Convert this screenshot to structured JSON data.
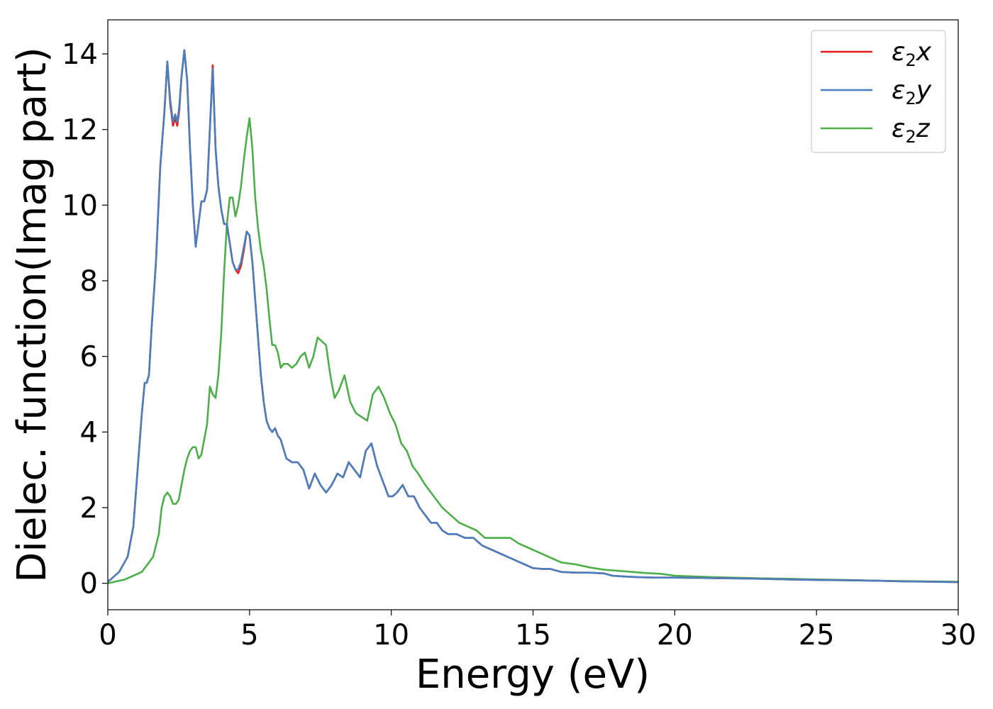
{
  "chart_data": {
    "type": "line",
    "title": "",
    "xlabel": "Energy (eV)",
    "ylabel": "Dielec. function(Imag part)",
    "xlim": [
      0,
      30
    ],
    "ylim": [
      -0.7,
      14.9
    ],
    "xticks": [
      0,
      5,
      10,
      15,
      20,
      25,
      30
    ],
    "yticks": [
      0,
      2,
      4,
      6,
      8,
      10,
      12,
      14
    ],
    "grid": false,
    "legend_position": "top-right",
    "series": [
      {
        "name": "ε₂x",
        "legend_base": "ε",
        "legend_sub": "2",
        "legend_suffix": "x",
        "color": "#e41a1c",
        "x": [
          0,
          0.1,
          0.4,
          0.7,
          0.9,
          1.05,
          1.2,
          1.3,
          1.37,
          1.45,
          1.55,
          1.7,
          1.85,
          2.0,
          2.1,
          2.2,
          2.3,
          2.38,
          2.45,
          2.52,
          2.6,
          2.7,
          2.8,
          2.9,
          3.0,
          3.1,
          3.2,
          3.3,
          3.4,
          3.5,
          3.6,
          3.7,
          3.8,
          3.9,
          4.0,
          4.1,
          4.2,
          4.3,
          4.4,
          4.5,
          4.6,
          4.7,
          4.8,
          4.9,
          5.0,
          5.1,
          5.2,
          5.3,
          5.4,
          5.5,
          5.6,
          5.7,
          5.8,
          5.9,
          6.0,
          6.1,
          6.3,
          6.5,
          6.7,
          6.9,
          7.1,
          7.3,
          7.5,
          7.7,
          7.9,
          8.1,
          8.3,
          8.5,
          8.7,
          8.9,
          9.1,
          9.3,
          9.5,
          9.7,
          9.9,
          10.05,
          10.2,
          10.4,
          10.6,
          10.8,
          11.0,
          11.2,
          11.4,
          11.6,
          11.8,
          12.0,
          12.3,
          12.6,
          12.9,
          13.2,
          13.5,
          13.8,
          14.1,
          14.4,
          14.7,
          15.0,
          15.3,
          15.6,
          16.0,
          16.5,
          17.0,
          17.5,
          17.8,
          18.2,
          18.7,
          19.3,
          20.0,
          21.0,
          22.0,
          23.0,
          24.0,
          25.0,
          26.0,
          27.0,
          28.0,
          29.0,
          30.0
        ],
        "y": [
          0.05,
          0.1,
          0.3,
          0.7,
          1.5,
          3.0,
          4.5,
          5.3,
          5.3,
          5.5,
          6.8,
          8.5,
          11.0,
          12.5,
          13.8,
          12.7,
          12.1,
          12.3,
          12.1,
          12.5,
          13.4,
          14.1,
          13.3,
          11.5,
          10.0,
          8.9,
          9.5,
          10.1,
          10.1,
          10.4,
          12.0,
          13.7,
          11.5,
          10.5,
          9.9,
          9.5,
          9.5,
          9.0,
          8.5,
          8.3,
          8.2,
          8.4,
          8.8,
          9.3,
          9.2,
          8.5,
          7.5,
          6.5,
          5.5,
          4.8,
          4.3,
          4.1,
          4.0,
          4.1,
          3.9,
          3.8,
          3.3,
          3.2,
          3.2,
          3.0,
          2.5,
          2.9,
          2.6,
          2.4,
          2.6,
          2.9,
          2.8,
          3.2,
          3.0,
          2.8,
          3.5,
          3.7,
          3.1,
          2.7,
          2.3,
          2.3,
          2.4,
          2.6,
          2.3,
          2.3,
          2.0,
          1.8,
          1.6,
          1.6,
          1.4,
          1.3,
          1.3,
          1.2,
          1.2,
          1.0,
          0.9,
          0.8,
          0.7,
          0.6,
          0.5,
          0.4,
          0.38,
          0.38,
          0.3,
          0.28,
          0.28,
          0.26,
          0.2,
          0.18,
          0.16,
          0.15,
          0.15,
          0.14,
          0.13,
          0.12,
          0.1,
          0.09,
          0.08,
          0.07,
          0.05,
          0.04,
          0.03
        ]
      },
      {
        "name": "ε₂y",
        "legend_base": "ε",
        "legend_sub": "2",
        "legend_suffix": "y",
        "color": "#4a7fbf",
        "x": [
          0,
          0.1,
          0.4,
          0.7,
          0.9,
          1.05,
          1.2,
          1.3,
          1.37,
          1.45,
          1.55,
          1.7,
          1.85,
          2.0,
          2.1,
          2.2,
          2.3,
          2.38,
          2.45,
          2.52,
          2.6,
          2.7,
          2.8,
          2.9,
          3.0,
          3.1,
          3.2,
          3.3,
          3.4,
          3.5,
          3.6,
          3.7,
          3.8,
          3.9,
          4.0,
          4.1,
          4.2,
          4.3,
          4.4,
          4.5,
          4.6,
          4.7,
          4.8,
          4.9,
          5.0,
          5.1,
          5.2,
          5.3,
          5.4,
          5.5,
          5.6,
          5.7,
          5.8,
          5.9,
          6.0,
          6.1,
          6.3,
          6.5,
          6.7,
          6.9,
          7.1,
          7.3,
          7.5,
          7.7,
          7.9,
          8.1,
          8.3,
          8.5,
          8.7,
          8.9,
          9.1,
          9.3,
          9.5,
          9.7,
          9.9,
          10.05,
          10.2,
          10.4,
          10.6,
          10.8,
          11.0,
          11.2,
          11.4,
          11.6,
          11.8,
          12.0,
          12.3,
          12.6,
          12.9,
          13.2,
          13.5,
          13.8,
          14.1,
          14.4,
          14.7,
          15.0,
          15.3,
          15.6,
          16.0,
          16.5,
          17.0,
          17.5,
          17.8,
          18.2,
          18.7,
          19.3,
          20.0,
          21.0,
          22.0,
          23.0,
          24.0,
          25.0,
          26.0,
          27.0,
          28.0,
          29.0,
          30.0
        ],
        "y": [
          0.05,
          0.1,
          0.3,
          0.7,
          1.5,
          3.0,
          4.5,
          5.3,
          5.3,
          5.5,
          6.8,
          8.5,
          11.0,
          12.5,
          13.8,
          12.8,
          12.2,
          12.4,
          12.2,
          12.6,
          13.4,
          14.1,
          13.3,
          11.5,
          10.0,
          8.9,
          9.5,
          10.1,
          10.1,
          10.4,
          12.0,
          13.6,
          11.5,
          10.5,
          9.9,
          9.5,
          9.5,
          9.0,
          8.5,
          8.3,
          8.3,
          8.5,
          8.9,
          9.3,
          9.2,
          8.5,
          7.5,
          6.5,
          5.5,
          4.8,
          4.3,
          4.1,
          4.0,
          4.1,
          3.9,
          3.8,
          3.3,
          3.2,
          3.2,
          3.0,
          2.5,
          2.9,
          2.6,
          2.4,
          2.6,
          2.9,
          2.8,
          3.2,
          3.0,
          2.8,
          3.5,
          3.7,
          3.1,
          2.7,
          2.3,
          2.3,
          2.4,
          2.6,
          2.3,
          2.3,
          2.0,
          1.8,
          1.6,
          1.6,
          1.4,
          1.3,
          1.3,
          1.2,
          1.2,
          1.0,
          0.9,
          0.8,
          0.7,
          0.6,
          0.5,
          0.4,
          0.38,
          0.38,
          0.3,
          0.28,
          0.28,
          0.26,
          0.2,
          0.18,
          0.16,
          0.15,
          0.15,
          0.14,
          0.13,
          0.12,
          0.1,
          0.09,
          0.08,
          0.07,
          0.05,
          0.04,
          0.03
        ]
      },
      {
        "name": "ε₂z",
        "legend_base": "ε",
        "legend_sub": "2",
        "legend_suffix": "z",
        "color": "#4daf4a",
        "x": [
          0,
          0.3,
          0.6,
          0.9,
          1.2,
          1.4,
          1.6,
          1.8,
          1.9,
          2.0,
          2.1,
          2.2,
          2.3,
          2.4,
          2.5,
          2.6,
          2.7,
          2.8,
          2.9,
          3.0,
          3.1,
          3.2,
          3.3,
          3.4,
          3.5,
          3.6,
          3.7,
          3.8,
          3.9,
          4.0,
          4.1,
          4.2,
          4.3,
          4.4,
          4.5,
          4.6,
          4.7,
          4.8,
          4.9,
          5.0,
          5.1,
          5.2,
          5.3,
          5.4,
          5.5,
          5.6,
          5.7,
          5.8,
          5.9,
          6.0,
          6.1,
          6.2,
          6.35,
          6.5,
          6.65,
          6.8,
          6.95,
          7.1,
          7.25,
          7.4,
          7.55,
          7.7,
          7.85,
          8.0,
          8.15,
          8.35,
          8.55,
          8.75,
          8.95,
          9.15,
          9.35,
          9.55,
          9.75,
          9.95,
          10.15,
          10.35,
          10.55,
          10.75,
          10.95,
          11.2,
          11.5,
          11.8,
          12.1,
          12.4,
          12.7,
          13.0,
          13.3,
          13.6,
          13.9,
          14.2,
          14.5,
          14.8,
          15.1,
          15.4,
          15.7,
          16.0,
          16.5,
          17.0,
          17.5,
          18.0,
          18.5,
          19.0,
          19.5,
          20.0,
          21.0,
          22.0,
          23.0,
          24.0,
          25.0,
          26.0,
          27.0,
          28.0,
          29.0,
          30.0
        ],
        "y": [
          0.0,
          0.05,
          0.1,
          0.2,
          0.3,
          0.5,
          0.7,
          1.3,
          2.0,
          2.3,
          2.4,
          2.3,
          2.1,
          2.1,
          2.2,
          2.6,
          3.0,
          3.3,
          3.5,
          3.6,
          3.6,
          3.3,
          3.4,
          3.8,
          4.2,
          5.2,
          5.0,
          4.9,
          5.5,
          6.6,
          8.2,
          9.5,
          10.2,
          10.2,
          9.7,
          10.0,
          10.5,
          11.2,
          11.8,
          12.3,
          11.5,
          10.2,
          9.4,
          8.8,
          8.4,
          7.8,
          7.0,
          6.3,
          6.3,
          6.1,
          5.7,
          5.8,
          5.8,
          5.7,
          5.8,
          6.0,
          6.1,
          5.7,
          6.0,
          6.5,
          6.4,
          6.3,
          5.5,
          4.9,
          5.1,
          5.5,
          4.8,
          4.5,
          4.4,
          4.3,
          5.0,
          5.2,
          4.9,
          4.5,
          4.2,
          3.7,
          3.5,
          3.1,
          2.9,
          2.6,
          2.3,
          2.0,
          1.8,
          1.6,
          1.5,
          1.4,
          1.2,
          1.2,
          1.2,
          1.2,
          1.05,
          0.95,
          0.85,
          0.75,
          0.65,
          0.55,
          0.5,
          0.42,
          0.36,
          0.33,
          0.3,
          0.27,
          0.25,
          0.2,
          0.17,
          0.15,
          0.13,
          0.12,
          0.1,
          0.09,
          0.07,
          0.06,
          0.05,
          0.04
        ]
      }
    ]
  }
}
